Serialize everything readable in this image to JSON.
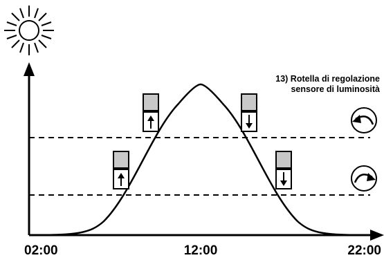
{
  "note": {
    "line1": "13) Rotella di regolazione",
    "line2": "sensore di luminosità"
  },
  "time_labels": {
    "start": "02:00",
    "mid": "12:00",
    "end": "22:00"
  },
  "icons": {
    "sun": "sun-icon",
    "upper_threshold_knob": "rotate-counterclockwise-icon",
    "lower_threshold_knob": "rotate-clockwise-icon",
    "shutter_up": "shutter-up-icon",
    "shutter_down": "shutter-down-icon"
  },
  "colors": {
    "shutter_fill": "#c8c8c8",
    "ink": "#000000"
  }
}
